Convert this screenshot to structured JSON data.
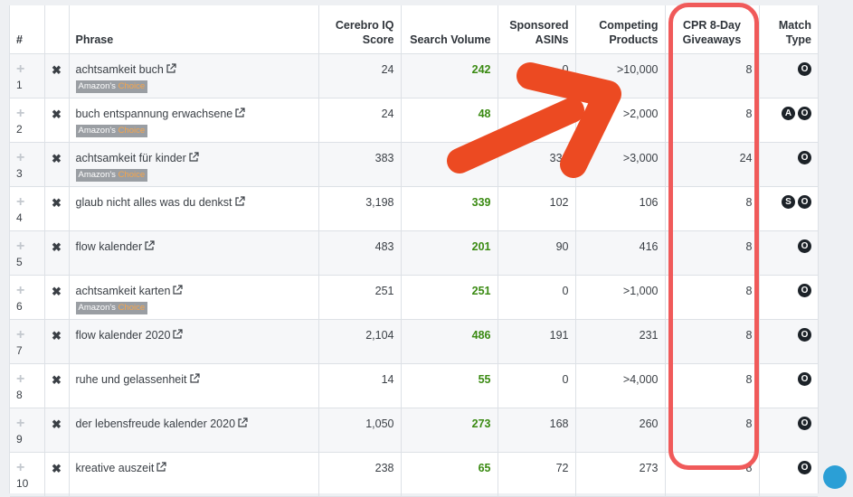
{
  "table": {
    "headers": {
      "num": "#",
      "phrase": "Phrase",
      "cerebro_iq_score": "Cerebro IQ Score",
      "search_volume": "Search Volume",
      "sponsored_asins": "Sponsored ASINs",
      "competing_products": "Competing Products",
      "cpr_giveaways": "CPR 8-Day Giveaways",
      "match_type": "Match Type"
    },
    "badge": {
      "part1": "Amazon's",
      "part2": "Choice"
    },
    "rows": [
      {
        "num": "1",
        "phrase": "achtsamkeit buch",
        "amazons_choice": true,
        "iq": "24",
        "volume": "242",
        "sponsored": "0",
        "competing": ">10,000",
        "cpr": "8",
        "match": [
          "O"
        ]
      },
      {
        "num": "2",
        "phrase": "buch entspannung erwachsene",
        "amazons_choice": true,
        "iq": "24",
        "volume": "48",
        "sponsored": "0",
        "competing": ">2,000",
        "cpr": "8",
        "match": [
          "A",
          "O"
        ]
      },
      {
        "num": "3",
        "phrase": "achtsamkeit für kinder",
        "amazons_choice": true,
        "iq": "383",
        "volume": "",
        "sponsored": "332",
        "competing": ">3,000",
        "cpr": "24",
        "match": [
          "O"
        ]
      },
      {
        "num": "4",
        "phrase": "glaub nicht alles was du denkst",
        "amazons_choice": false,
        "iq": "3,198",
        "volume": "339",
        "sponsored": "102",
        "competing": "106",
        "cpr": "8",
        "match": [
          "S",
          "O"
        ]
      },
      {
        "num": "5",
        "phrase": "flow kalender",
        "amazons_choice": false,
        "iq": "483",
        "volume": "201",
        "sponsored": "90",
        "competing": "416",
        "cpr": "8",
        "match": [
          "O"
        ]
      },
      {
        "num": "6",
        "phrase": "achtsamkeit karten",
        "amazons_choice": true,
        "iq": "251",
        "volume": "251",
        "sponsored": "0",
        "competing": ">1,000",
        "cpr": "8",
        "match": [
          "O"
        ]
      },
      {
        "num": "7",
        "phrase": "flow kalender 2020",
        "amazons_choice": false,
        "iq": "2,104",
        "volume": "486",
        "sponsored": "191",
        "competing": "231",
        "cpr": "8",
        "match": [
          "O"
        ]
      },
      {
        "num": "8",
        "phrase": "ruhe und gelassenheit",
        "amazons_choice": false,
        "iq": "14",
        "volume": "55",
        "sponsored": "0",
        "competing": ">4,000",
        "cpr": "8",
        "match": [
          "O"
        ]
      },
      {
        "num": "9",
        "phrase": "der lebensfreude kalender 2020",
        "amazons_choice": false,
        "iq": "1,050",
        "volume": "273",
        "sponsored": "168",
        "competing": "260",
        "cpr": "8",
        "match": [
          "O"
        ]
      },
      {
        "num": "10",
        "phrase": "kreative auszeit",
        "amazons_choice": false,
        "iq": "238",
        "volume": "65",
        "sponsored": "72",
        "competing": "273",
        "cpr": "8",
        "match": [
          "O"
        ]
      }
    ]
  },
  "colors": {
    "highlight_box": "#f05a5a",
    "arrow": "#ec4a22",
    "volume_text": "#3a8a12",
    "match_circle": "#1c2228"
  },
  "icons": {
    "add_row": "plus-icon",
    "remove_row": "close-icon",
    "external_link": "external-link-icon"
  }
}
